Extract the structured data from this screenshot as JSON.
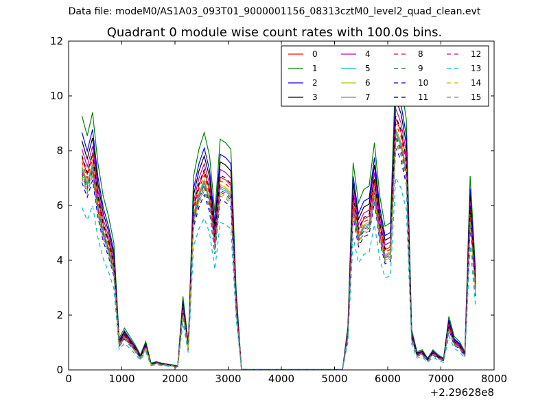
{
  "header": {
    "file_title": "Data file: modeM0/AS1A03_093T01_9000001156_08313cztM0_level2_quad_clean.evt"
  },
  "chart_data": {
    "type": "line",
    "title": "Quadrant 0 module wise count rates with 100.0s bins.",
    "xlabel": "",
    "ylabel": "",
    "xlim": [
      0,
      8000
    ],
    "ylim": [
      0,
      12
    ],
    "x_offset_label": "+2.29628e8",
    "x_ticks": [
      0,
      1000,
      2000,
      3000,
      4000,
      5000,
      6000,
      7000,
      8000
    ],
    "y_ticks": [
      0,
      2,
      4,
      6,
      8,
      10,
      12
    ],
    "grid": false,
    "legend_position": "top-right",
    "legend_columns": 4,
    "x": [
      250,
      350,
      450,
      550,
      650,
      750,
      850,
      950,
      1050,
      1150,
      1250,
      1350,
      1450,
      1550,
      1650,
      1750,
      1850,
      1950,
      2050,
      2150,
      2250,
      2350,
      2450,
      2550,
      2650,
      2750,
      2850,
      2950,
      3050,
      3150,
      3250,
      3350,
      3450,
      3550,
      3650,
      3750,
      3850,
      3950,
      4050,
      4150,
      4250,
      4350,
      4450,
      4550,
      4650,
      4750,
      4850,
      4950,
      5050,
      5150,
      5250,
      5350,
      5450,
      5550,
      5650,
      5750,
      5850,
      5950,
      6050,
      6150,
      6250,
      6350,
      6450,
      6550,
      6650,
      6750,
      6850,
      6950,
      7050,
      7150,
      7250,
      7350,
      7450,
      7550,
      7650
    ],
    "base_profile": [
      7.6,
      7.0,
      7.7,
      6.2,
      5.2,
      4.6,
      3.8,
      0.95,
      1.25,
      1.0,
      0.75,
      0.45,
      0.85,
      0.2,
      0.25,
      0.2,
      0.18,
      0.15,
      0.12,
      2.2,
      0.8,
      5.8,
      6.6,
      7.1,
      6.4,
      4.7,
      6.9,
      6.8,
      6.6,
      2.4,
      0.02,
      0.01,
      0.01,
      0.01,
      0.01,
      0.01,
      0.01,
      0.01,
      0.01,
      0.01,
      0.01,
      0.01,
      0.01,
      0.01,
      0.01,
      0.01,
      0.01,
      0.01,
      0.01,
      0.01,
      1.3,
      6.2,
      5.0,
      5.4,
      5.5,
      6.8,
      5.2,
      4.3,
      4.4,
      9.0,
      8.5,
      7.5,
      1.2,
      0.55,
      0.6,
      0.35,
      0.6,
      0.45,
      0.35,
      1.6,
      1.0,
      0.85,
      0.55,
      5.8,
      3.0
    ],
    "series": [
      {
        "name": "0",
        "color": "#ff0000",
        "dash": "solid",
        "scale": 1.02
      },
      {
        "name": "1",
        "color": "#008000",
        "dash": "solid",
        "scale": 1.22
      },
      {
        "name": "2",
        "color": "#0000ff",
        "dash": "solid",
        "scale": 1.14
      },
      {
        "name": "3",
        "color": "#000000",
        "dash": "solid",
        "scale": 1.1
      },
      {
        "name": "4",
        "color": "#bf00bf",
        "dash": "solid",
        "scale": 1.06
      },
      {
        "name": "5",
        "color": "#00bfbf",
        "dash": "solid",
        "scale": 0.96
      },
      {
        "name": "6",
        "color": "#bfbf00",
        "dash": "solid",
        "scale": 0.98
      },
      {
        "name": "7",
        "color": "#808080",
        "dash": "solid",
        "scale": 0.97
      },
      {
        "name": "8",
        "color": "#ff0000",
        "dash": "dashed",
        "scale": 1.0
      },
      {
        "name": "9",
        "color": "#008000",
        "dash": "dashed",
        "scale": 0.94
      },
      {
        "name": "10",
        "color": "#0000ff",
        "dash": "dashed",
        "scale": 0.9
      },
      {
        "name": "11",
        "color": "#000000",
        "dash": "dashed",
        "scale": 1.03
      },
      {
        "name": "12",
        "color": "#bf00bf",
        "dash": "dashed",
        "scale": 0.95
      },
      {
        "name": "13",
        "color": "#00bfbf",
        "dash": "dashed",
        "scale": 0.78
      },
      {
        "name": "14",
        "color": "#bfbf00",
        "dash": "dashed",
        "scale": 0.93
      },
      {
        "name": "15",
        "color": "#808080",
        "dash": "dashed",
        "scale": 0.92
      }
    ]
  }
}
